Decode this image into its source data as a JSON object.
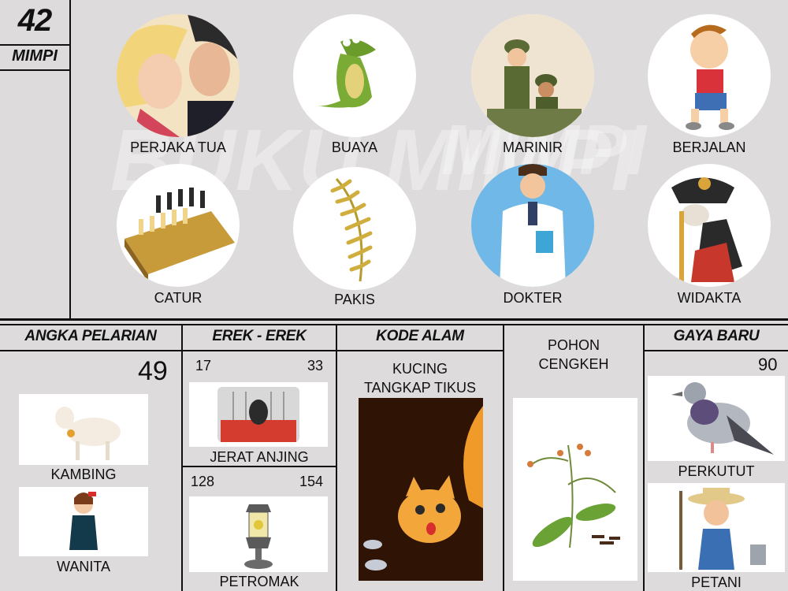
{
  "header": {
    "number": "42",
    "label": "MIMPI"
  },
  "watermark": "BUKU MIMPI",
  "dreams": [
    {
      "name": "PERJAKA TUA",
      "icon": "couple-icon"
    },
    {
      "name": "BUAYA",
      "icon": "crocodile-icon"
    },
    {
      "name": "MARINIR",
      "icon": "soldiers-icon"
    },
    {
      "name": "BERJALAN",
      "icon": "walking-boy-icon"
    },
    {
      "name": "CATUR",
      "icon": "chess-board-icon"
    },
    {
      "name": "PAKIS",
      "icon": "fern-icon"
    },
    {
      "name": "DOKTER",
      "icon": "doctor-icon"
    },
    {
      "name": "WIDAKTA",
      "icon": "wayang-icon"
    }
  ],
  "sections": {
    "angka_pelarian": {
      "title": "ANGKA PELARIAN",
      "number": "49",
      "items": [
        {
          "name": "KAMBING",
          "icon": "goat-icon"
        },
        {
          "name": "WANITA",
          "icon": "woman-icon"
        }
      ]
    },
    "erek_erek": {
      "title": "EREK - EREK",
      "items": [
        {
          "name": "JERAT ANJING",
          "num_left": "17",
          "num_right": "33",
          "icon": "dog-cage-icon"
        },
        {
          "name": "PETROMAK",
          "num_left": "128",
          "num_right": "154",
          "icon": "lantern-icon"
        }
      ]
    },
    "kode_alam": {
      "title": "KODE ALAM",
      "line1": "KUCING",
      "line2": "TANGKAP TIKUS",
      "icon": "cat-mouse-icon"
    },
    "pohon": {
      "line1": "POHON",
      "line2": "CENGKEH",
      "icon": "clove-plant-icon"
    },
    "gaya_baru": {
      "title": "GAYA BARU",
      "number": "90",
      "items": [
        {
          "name": "PERKUTUT",
          "icon": "dove-icon"
        },
        {
          "name": "PETANI",
          "icon": "farmer-icon"
        }
      ]
    }
  }
}
